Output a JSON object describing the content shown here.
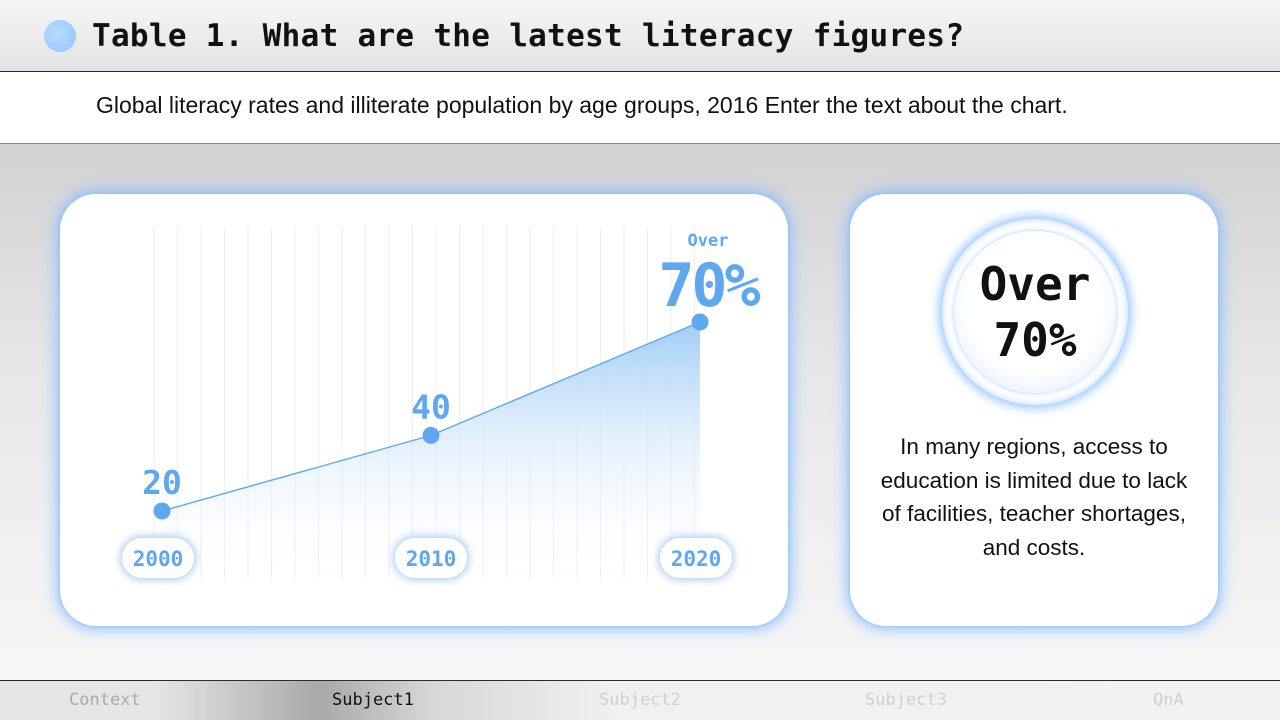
{
  "header": {
    "title": "Table 1. What are the latest literacy figures?"
  },
  "subtitle": "Global literacy rates and illiterate population by age groups, 2016 Enter the text about the chart.",
  "chart_data": {
    "type": "area",
    "categories": [
      "2000",
      "2010",
      "2020"
    ],
    "values": [
      20,
      40,
      70
    ],
    "point_labels": [
      "20",
      "40",
      "70%"
    ],
    "last_prefix": "Over",
    "color": "#5fa8f0"
  },
  "info": {
    "circle_line1": "Over",
    "circle_line2": "70%",
    "text": "In many regions, access to education is limited due to lack of facilities, teacher shortages, and costs."
  },
  "nav": {
    "items": [
      {
        "label": "Context",
        "state": "normal"
      },
      {
        "label": "Subject1",
        "state": "active"
      },
      {
        "label": "Subject2",
        "state": "dim"
      },
      {
        "label": "Subject3",
        "state": "dim"
      },
      {
        "label": "QnA",
        "state": "dim"
      }
    ]
  }
}
